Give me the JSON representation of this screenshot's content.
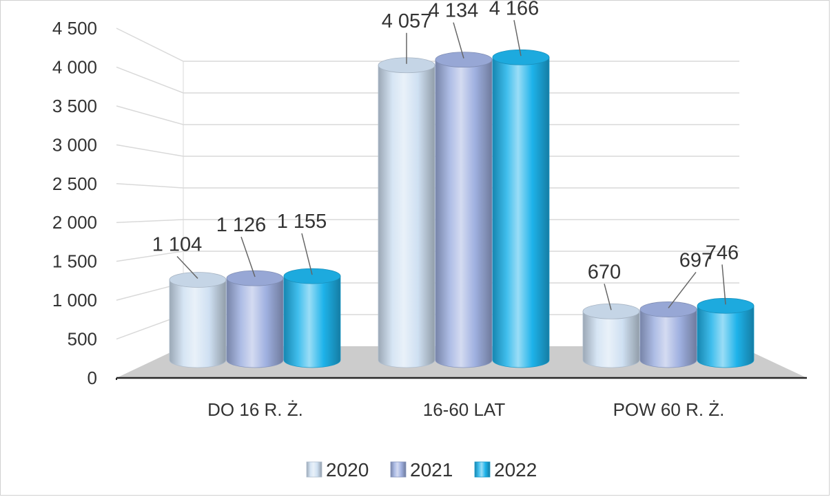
{
  "chart_data": {
    "type": "bar",
    "style": "3d-cylinder",
    "categories": [
      "DO 16 R. Ż.",
      "16-60 LAT",
      "POW 60 R. Ż."
    ],
    "series": [
      {
        "name": "2020",
        "values": [
          1104,
          4057,
          670
        ],
        "color": "#cfe0f2"
      },
      {
        "name": "2021",
        "values": [
          1126,
          4134,
          697
        ],
        "color": "#9fb0e0"
      },
      {
        "name": "2022",
        "values": [
          1155,
          4166,
          746
        ],
        "color": "#1eb3ea"
      }
    ],
    "data_labels": [
      [
        "1 104",
        "4 057",
        "670"
      ],
      [
        "1 126",
        "4 134",
        "697"
      ],
      [
        "1 155",
        "4 166",
        "746"
      ]
    ],
    "y_ticks": [
      "0",
      "500",
      "1 000",
      "1 500",
      "2 000",
      "2 500",
      "3 000",
      "3 500",
      "4 000",
      "4 500"
    ],
    "ylim": [
      0,
      4500
    ],
    "title": "",
    "xlabel": "",
    "ylabel": "",
    "grid": true,
    "legend": "bottom"
  }
}
